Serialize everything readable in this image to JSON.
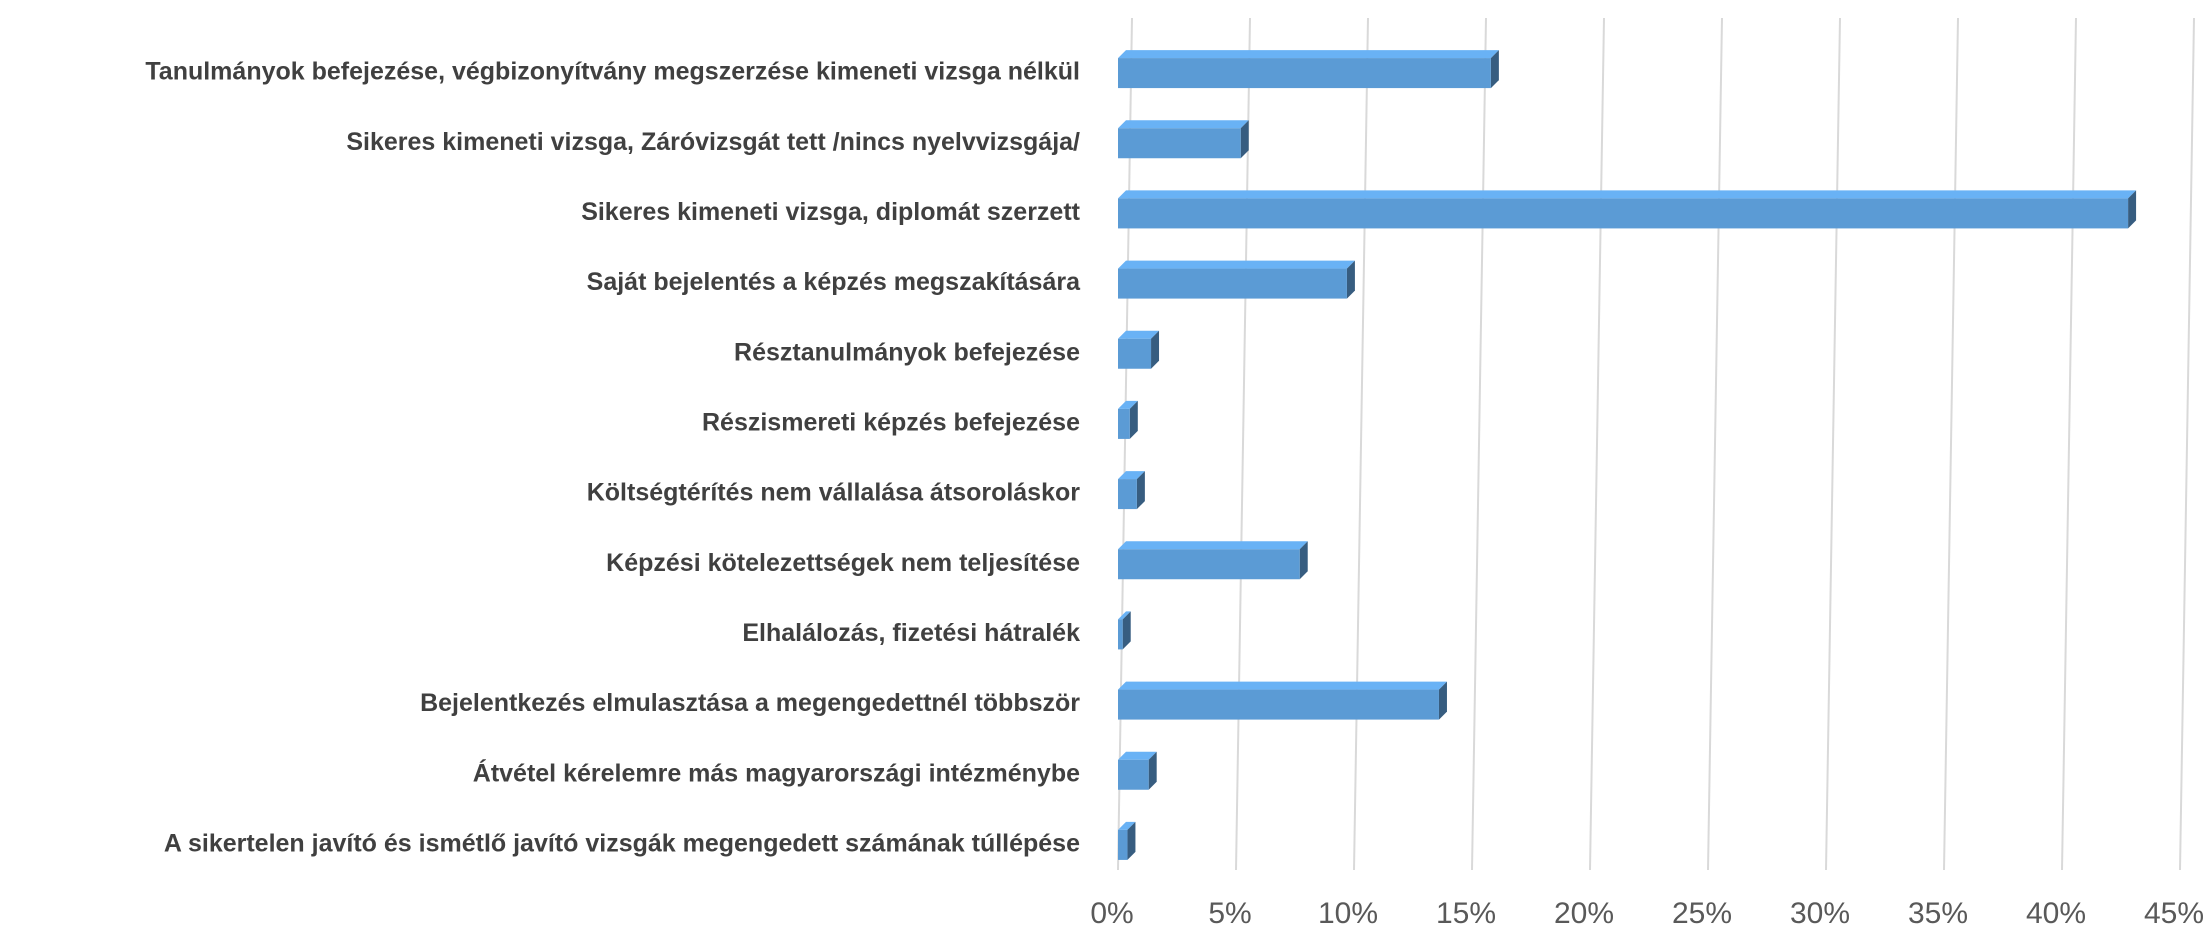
{
  "chart_data": {
    "type": "bar",
    "orientation": "horizontal",
    "categories": [
      "Tanulmányok befejezése, végbizonyítvány megszerzése kimeneti vizsga nélkül",
      "Sikeres kimeneti vizsga, Záróvizsgát tett /nincs nyelvvizsgája/",
      "Sikeres kimeneti vizsga, diplomát szerzett",
      "Saját bejelentés a képzés megszakítására",
      "Résztanulmányok befejezése",
      "Részismereti képzés befejezése",
      "Költségtérítés nem vállalása átsoroláskor",
      "Képzési kötelezettségek nem teljesítése",
      "Elhalálozás, fizetési hátralék",
      "Bejelentkezés elmulasztása a megengedettnél többször",
      "Átvétel kérelemre más magyarországi intézménybe",
      "A sikertelen javító és ismétlő javító vizsgák megengedett számának túllépése"
    ],
    "values": [
      15.8,
      5.2,
      42.8,
      9.7,
      1.4,
      0.5,
      0.8,
      7.7,
      0.2,
      13.6,
      1.3,
      0.4
    ],
    "color": "#5b9bd5",
    "xlim": [
      0,
      45
    ],
    "xticks": [
      {
        "value": 0,
        "label": "0%"
      },
      {
        "value": 5,
        "label": "5%"
      },
      {
        "value": 10,
        "label": "10%"
      },
      {
        "value": 15,
        "label": "15%"
      },
      {
        "value": 20,
        "label": "20%"
      },
      {
        "value": 25,
        "label": "25%"
      },
      {
        "value": 30,
        "label": "30%"
      },
      {
        "value": 35,
        "label": "35%"
      },
      {
        "value": 40,
        "label": "40%"
      },
      {
        "value": 45,
        "label": "45%"
      }
    ],
    "grid": true
  }
}
